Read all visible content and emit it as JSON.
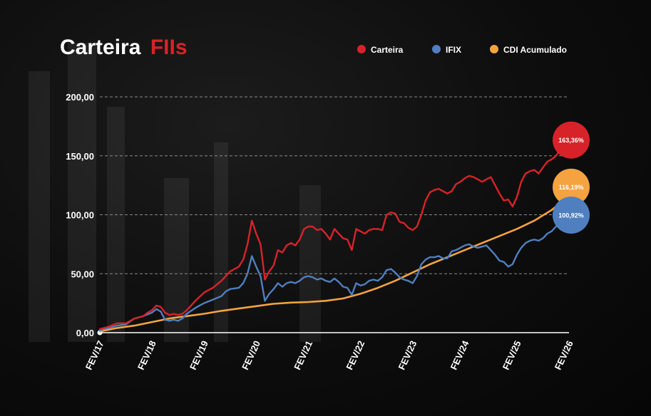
{
  "title": {
    "main": "Carteira",
    "accent": "FIIs"
  },
  "colors": {
    "background": "#0a0a0a",
    "accent": "#d8222a",
    "carteira": "#d8222a",
    "ifix": "#4f7fbf",
    "cdi": "#f4a340",
    "grid": "#8a8a8a"
  },
  "chart_data": {
    "type": "line",
    "xlim": [
      0,
      108
    ],
    "ylim": [
      0,
      200
    ],
    "y_ticks": [
      "0,00",
      "50,00",
      "100,00",
      "150,00",
      "200,00"
    ],
    "y_tick_values": [
      0,
      50,
      100,
      150,
      200
    ],
    "x_ticks": [
      "FEV/17",
      "FEV/18",
      "FEV/19",
      "FEV/20",
      "FEV/21",
      "FEV/22",
      "FEV/23",
      "FEV/24",
      "FEV/25",
      "FEV/26"
    ],
    "x_tick_values": [
      0,
      12,
      24,
      36,
      48,
      60,
      72,
      84,
      96,
      108
    ],
    "grid": "horizontal-dashed",
    "legend_position": "top-right",
    "series": [
      {
        "name": "Carteira",
        "key": "carteira",
        "end_label": "163,36%",
        "points": [
          [
            0,
            3
          ],
          [
            2,
            5
          ],
          [
            4,
            8
          ],
          [
            6,
            8
          ],
          [
            8,
            12
          ],
          [
            10,
            14
          ],
          [
            11,
            17
          ],
          [
            12,
            19
          ],
          [
            13,
            23
          ],
          [
            14,
            22
          ],
          [
            15,
            17
          ],
          [
            16,
            15
          ],
          [
            17,
            16
          ],
          [
            18,
            15
          ],
          [
            19,
            16
          ],
          [
            20,
            19
          ],
          [
            22,
            27
          ],
          [
            24,
            34
          ],
          [
            26,
            38
          ],
          [
            28,
            44
          ],
          [
            30,
            52
          ],
          [
            32,
            56
          ],
          [
            33,
            62
          ],
          [
            34,
            75
          ],
          [
            35,
            95
          ],
          [
            36,
            84
          ],
          [
            37,
            75
          ],
          [
            38,
            45
          ],
          [
            39,
            52
          ],
          [
            40,
            57
          ],
          [
            41,
            70
          ],
          [
            42,
            68
          ],
          [
            43,
            74
          ],
          [
            44,
            76
          ],
          [
            45,
            74
          ],
          [
            46,
            79
          ],
          [
            47,
            88
          ],
          [
            48,
            90
          ],
          [
            49,
            90
          ],
          [
            50,
            87
          ],
          [
            51,
            88
          ],
          [
            52,
            84
          ],
          [
            53,
            79
          ],
          [
            54,
            88
          ],
          [
            55,
            84
          ],
          [
            56,
            80
          ],
          [
            57,
            79
          ],
          [
            58,
            70
          ],
          [
            59,
            88
          ],
          [
            60,
            86
          ],
          [
            61,
            84
          ],
          [
            62,
            87
          ],
          [
            63,
            88
          ],
          [
            64,
            88
          ],
          [
            65,
            87
          ],
          [
            66,
            100
          ],
          [
            67,
            102
          ],
          [
            68,
            101
          ],
          [
            69,
            94
          ],
          [
            70,
            93
          ],
          [
            71,
            89
          ],
          [
            72,
            87
          ],
          [
            73,
            90
          ],
          [
            74,
            100
          ],
          [
            75,
            112
          ],
          [
            76,
            119
          ],
          [
            77,
            121
          ],
          [
            78,
            122
          ],
          [
            79,
            120
          ],
          [
            80,
            118
          ],
          [
            81,
            120
          ],
          [
            82,
            126
          ],
          [
            83,
            128
          ],
          [
            84,
            131
          ],
          [
            85,
            133
          ],
          [
            86,
            132
          ],
          [
            87,
            130
          ],
          [
            88,
            128
          ],
          [
            89,
            130
          ],
          [
            90,
            132
          ],
          [
            91,
            125
          ],
          [
            92,
            118
          ],
          [
            93,
            112
          ],
          [
            94,
            113
          ],
          [
            95,
            107
          ],
          [
            96,
            115
          ],
          [
            97,
            128
          ],
          [
            98,
            135
          ],
          [
            99,
            137
          ],
          [
            100,
            138
          ],
          [
            101,
            135
          ],
          [
            102,
            140
          ],
          [
            103,
            145
          ],
          [
            104,
            147
          ],
          [
            105,
            150
          ],
          [
            106,
            155
          ],
          [
            107,
            160
          ],
          [
            108,
            163.36
          ]
        ]
      },
      {
        "name": "IFIX",
        "key": "ifix",
        "end_label": "100,92%",
        "points": [
          [
            0,
            2
          ],
          [
            2,
            4
          ],
          [
            4,
            6
          ],
          [
            6,
            7
          ],
          [
            8,
            12
          ],
          [
            10,
            14
          ],
          [
            12,
            17
          ],
          [
            13,
            20
          ],
          [
            14,
            18
          ],
          [
            15,
            11
          ],
          [
            16,
            10
          ],
          [
            17,
            11
          ],
          [
            18,
            10
          ],
          [
            19,
            12
          ],
          [
            20,
            16
          ],
          [
            22,
            21
          ],
          [
            24,
            25
          ],
          [
            26,
            28
          ],
          [
            28,
            31
          ],
          [
            29,
            35
          ],
          [
            30,
            37
          ],
          [
            32,
            38
          ],
          [
            33,
            42
          ],
          [
            34,
            50
          ],
          [
            35,
            65
          ],
          [
            36,
            56
          ],
          [
            37,
            48
          ],
          [
            38,
            27
          ],
          [
            39,
            33
          ],
          [
            40,
            37
          ],
          [
            41,
            42
          ],
          [
            42,
            39
          ],
          [
            43,
            42
          ],
          [
            44,
            43
          ],
          [
            45,
            42
          ],
          [
            46,
            44
          ],
          [
            47,
            47
          ],
          [
            48,
            48
          ],
          [
            49,
            47
          ],
          [
            50,
            45
          ],
          [
            51,
            46
          ],
          [
            52,
            44
          ],
          [
            53,
            43
          ],
          [
            54,
            46
          ],
          [
            55,
            43
          ],
          [
            56,
            39
          ],
          [
            57,
            38
          ],
          [
            58,
            32
          ],
          [
            59,
            42
          ],
          [
            60,
            40
          ],
          [
            61,
            41
          ],
          [
            62,
            44
          ],
          [
            63,
            45
          ],
          [
            64,
            44
          ],
          [
            65,
            47
          ],
          [
            66,
            53
          ],
          [
            67,
            54
          ],
          [
            68,
            51
          ],
          [
            69,
            47
          ],
          [
            70,
            45
          ],
          [
            71,
            44
          ],
          [
            72,
            42
          ],
          [
            73,
            48
          ],
          [
            74,
            58
          ],
          [
            75,
            62
          ],
          [
            76,
            64
          ],
          [
            77,
            64
          ],
          [
            78,
            65
          ],
          [
            79,
            63
          ],
          [
            80,
            63
          ],
          [
            81,
            69
          ],
          [
            82,
            70
          ],
          [
            83,
            72
          ],
          [
            84,
            74
          ],
          [
            85,
            75
          ],
          [
            86,
            73
          ],
          [
            87,
            72
          ],
          [
            88,
            73
          ],
          [
            89,
            74
          ],
          [
            90,
            70
          ],
          [
            91,
            66
          ],
          [
            92,
            61
          ],
          [
            93,
            60
          ],
          [
            94,
            56
          ],
          [
            95,
            58
          ],
          [
            96,
            66
          ],
          [
            97,
            72
          ],
          [
            98,
            76
          ],
          [
            99,
            78
          ],
          [
            100,
            79
          ],
          [
            101,
            78
          ],
          [
            102,
            80
          ],
          [
            103,
            84
          ],
          [
            104,
            86
          ],
          [
            105,
            90
          ],
          [
            106,
            94
          ],
          [
            107,
            98
          ],
          [
            108,
            100.92
          ]
        ]
      },
      {
        "name": "CDI Acumulado",
        "key": "cdi",
        "end_label": "116,19%",
        "points": [
          [
            0,
            1
          ],
          [
            4,
            4
          ],
          [
            8,
            6
          ],
          [
            12,
            9
          ],
          [
            16,
            12
          ],
          [
            20,
            14
          ],
          [
            24,
            16
          ],
          [
            28,
            18.5
          ],
          [
            32,
            20.5
          ],
          [
            36,
            22.5
          ],
          [
            40,
            24.5
          ],
          [
            44,
            25.5
          ],
          [
            48,
            26
          ],
          [
            52,
            27
          ],
          [
            56,
            29
          ],
          [
            60,
            33
          ],
          [
            64,
            38
          ],
          [
            68,
            44
          ],
          [
            72,
            51
          ],
          [
            76,
            58
          ],
          [
            80,
            64
          ],
          [
            84,
            70
          ],
          [
            88,
            76
          ],
          [
            92,
            82
          ],
          [
            96,
            88
          ],
          [
            100,
            95
          ],
          [
            104,
            104
          ],
          [
            108,
            116.19
          ]
        ]
      }
    ]
  }
}
